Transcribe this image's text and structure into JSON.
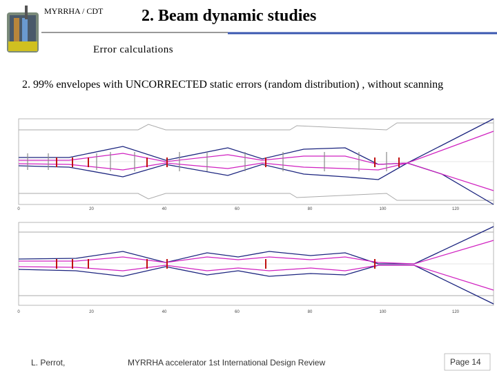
{
  "header": {
    "org": "MYRRHA / CDT",
    "title": "2. Beam dynamic studies",
    "subtitle": "Error calculations"
  },
  "body": {
    "text": "2. 99% envelopes with UNCORRECTED static errors (random distribution) , without scanning"
  },
  "figures": [
    {
      "xticks": [
        "0",
        "20",
        "40",
        "60",
        "80",
        "100",
        "120"
      ]
    },
    {
      "xticks": [
        "0",
        "20",
        "40",
        "60",
        "80",
        "100",
        "120"
      ]
    }
  ],
  "footer": {
    "author": "L. Perrot,",
    "event": "MYRRHA accelerator 1st International Design Review",
    "page": "Page 14"
  }
}
